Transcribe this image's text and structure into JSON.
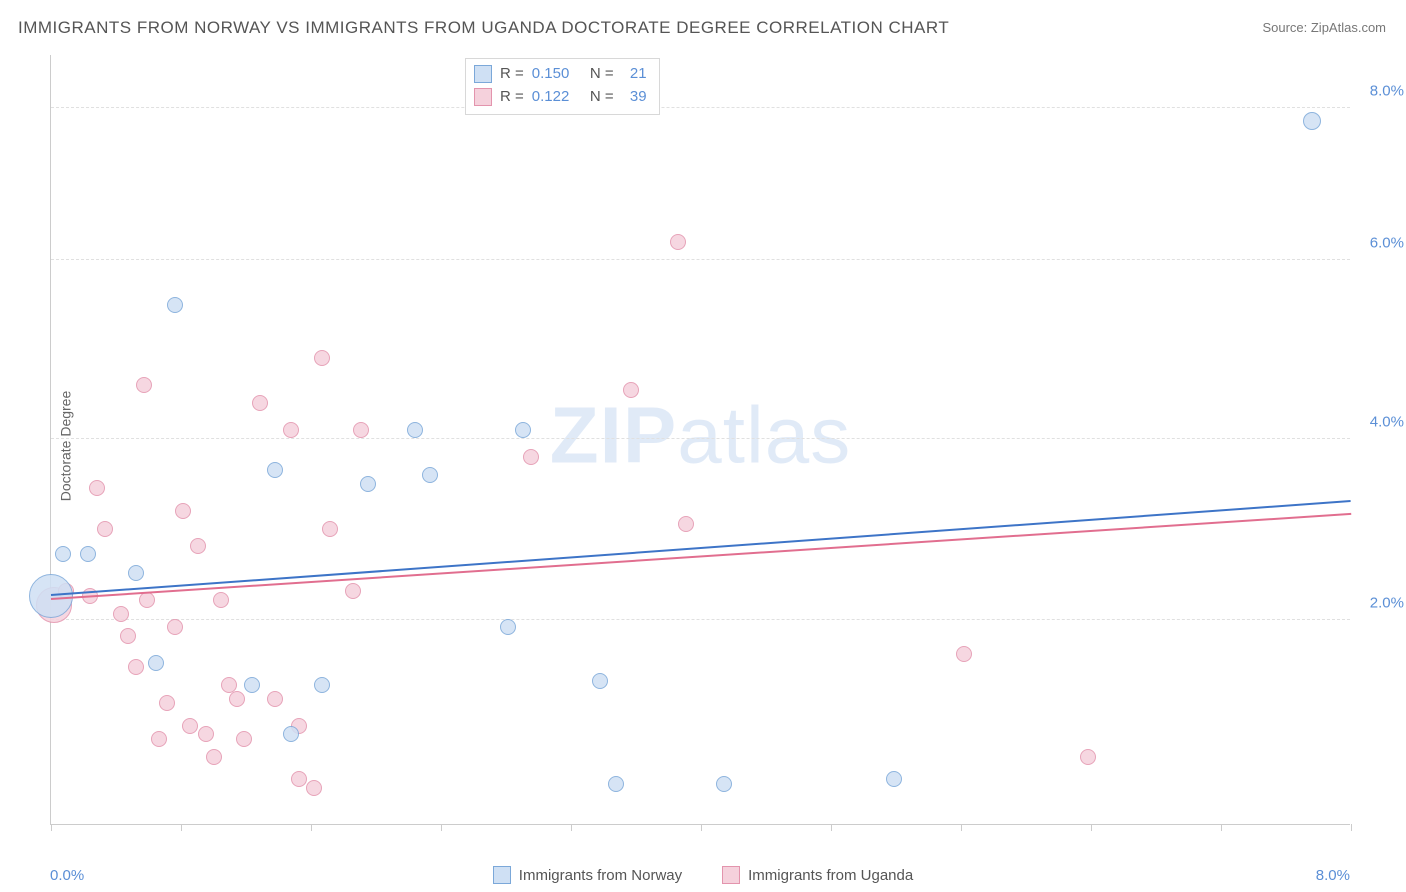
{
  "title": "IMMIGRANTS FROM NORWAY VS IMMIGRANTS FROM UGANDA DOCTORATE DEGREE CORRELATION CHART",
  "source": "Source: ZipAtlas.com",
  "watermark": "ZIPatlas",
  "yaxis_title": "Doctorate Degree",
  "chart": {
    "type": "scatter",
    "xlim": [
      0,
      8.4
    ],
    "ylim": [
      0,
      8.6
    ],
    "x_ticks": [
      0,
      0.84,
      1.68,
      2.52,
      3.36,
      4.2,
      5.04,
      5.88,
      6.72,
      7.56,
      8.4
    ],
    "y_gridlines": [
      2.28,
      4.3,
      6.3,
      8.0
    ],
    "y_labels": [
      "2.0%",
      "4.0%",
      "6.0%",
      "8.0%"
    ],
    "x_min_label": "0.0%",
    "x_max_label": "8.0%",
    "background_color": "#ffffff",
    "grid_color": "#e0e0e0",
    "axis_color": "#cccccc",
    "tick_label_color": "#5b8fd6"
  },
  "series": [
    {
      "name": "Immigrants from Norway",
      "key": "norway",
      "fill": "#cfe0f4",
      "stroke": "#7ba8d9",
      "line_color": "#3d74c7",
      "r_label": "R =",
      "r_value": "0.150",
      "n_label": "N =",
      "n_value": "21",
      "trend": {
        "x1": 0.0,
        "y1": 2.55,
        "x2": 8.4,
        "y2": 3.6
      },
      "points": [
        {
          "x": 0.0,
          "y": 2.55,
          "r": 22
        },
        {
          "x": 0.08,
          "y": 3.02,
          "r": 8
        },
        {
          "x": 0.24,
          "y": 3.02,
          "r": 8
        },
        {
          "x": 0.55,
          "y": 2.8,
          "r": 8
        },
        {
          "x": 0.8,
          "y": 5.8,
          "r": 8
        },
        {
          "x": 0.68,
          "y": 1.8,
          "r": 8
        },
        {
          "x": 1.3,
          "y": 1.55,
          "r": 8
        },
        {
          "x": 1.45,
          "y": 3.95,
          "r": 8
        },
        {
          "x": 1.55,
          "y": 1.0,
          "r": 8
        },
        {
          "x": 1.75,
          "y": 1.55,
          "r": 8
        },
        {
          "x": 2.05,
          "y": 3.8,
          "r": 8
        },
        {
          "x": 2.35,
          "y": 4.4,
          "r": 8
        },
        {
          "x": 2.45,
          "y": 3.9,
          "r": 8
        },
        {
          "x": 2.95,
          "y": 2.2,
          "r": 8
        },
        {
          "x": 3.05,
          "y": 4.4,
          "r": 8
        },
        {
          "x": 3.55,
          "y": 1.6,
          "r": 8
        },
        {
          "x": 3.65,
          "y": 0.45,
          "r": 8
        },
        {
          "x": 4.35,
          "y": 0.45,
          "r": 8
        },
        {
          "x": 5.45,
          "y": 0.5,
          "r": 8
        },
        {
          "x": 8.15,
          "y": 7.85,
          "r": 9
        }
      ]
    },
    {
      "name": "Immigrants from Uganda",
      "key": "uganda",
      "fill": "#f5d1dc",
      "stroke": "#e394ad",
      "line_color": "#e16e8f",
      "r_label": "R =",
      "r_value": "0.122",
      "n_label": "N =",
      "n_value": "39",
      "trend": {
        "x1": 0.0,
        "y1": 2.5,
        "x2": 8.4,
        "y2": 3.45
      },
      "points": [
        {
          "x": 0.02,
          "y": 2.45,
          "r": 18
        },
        {
          "x": 0.1,
          "y": 2.6,
          "r": 8
        },
        {
          "x": 0.25,
          "y": 2.55,
          "r": 8
        },
        {
          "x": 0.3,
          "y": 3.75,
          "r": 8
        },
        {
          "x": 0.35,
          "y": 3.3,
          "r": 8
        },
        {
          "x": 0.45,
          "y": 2.35,
          "r": 8
        },
        {
          "x": 0.5,
          "y": 2.1,
          "r": 8
        },
        {
          "x": 0.55,
          "y": 1.75,
          "r": 8
        },
        {
          "x": 0.6,
          "y": 4.9,
          "r": 8
        },
        {
          "x": 0.62,
          "y": 2.5,
          "r": 8
        },
        {
          "x": 0.7,
          "y": 0.95,
          "r": 8
        },
        {
          "x": 0.75,
          "y": 1.35,
          "r": 8
        },
        {
          "x": 0.8,
          "y": 2.2,
          "r": 8
        },
        {
          "x": 0.85,
          "y": 3.5,
          "r": 8
        },
        {
          "x": 0.9,
          "y": 1.1,
          "r": 8
        },
        {
          "x": 0.95,
          "y": 3.1,
          "r": 8
        },
        {
          "x": 1.0,
          "y": 1.0,
          "r": 8
        },
        {
          "x": 1.05,
          "y": 0.75,
          "r": 8
        },
        {
          "x": 1.1,
          "y": 2.5,
          "r": 8
        },
        {
          "x": 1.15,
          "y": 1.55,
          "r": 8
        },
        {
          "x": 1.2,
          "y": 1.4,
          "r": 8
        },
        {
          "x": 1.25,
          "y": 0.95,
          "r": 8
        },
        {
          "x": 1.35,
          "y": 4.7,
          "r": 8
        },
        {
          "x": 1.45,
          "y": 1.4,
          "r": 8
        },
        {
          "x": 1.55,
          "y": 4.4,
          "r": 8
        },
        {
          "x": 1.6,
          "y": 0.5,
          "r": 8
        },
        {
          "x": 1.6,
          "y": 1.1,
          "r": 8
        },
        {
          "x": 1.7,
          "y": 0.4,
          "r": 8
        },
        {
          "x": 1.75,
          "y": 5.2,
          "r": 8
        },
        {
          "x": 1.8,
          "y": 3.3,
          "r": 8
        },
        {
          "x": 1.95,
          "y": 2.6,
          "r": 8
        },
        {
          "x": 2.0,
          "y": 4.4,
          "r": 8
        },
        {
          "x": 3.1,
          "y": 4.1,
          "r": 8
        },
        {
          "x": 3.75,
          "y": 4.85,
          "r": 8
        },
        {
          "x": 4.05,
          "y": 6.5,
          "r": 8
        },
        {
          "x": 4.1,
          "y": 3.35,
          "r": 8
        },
        {
          "x": 5.9,
          "y": 1.9,
          "r": 8
        },
        {
          "x": 6.7,
          "y": 0.75,
          "r": 8
        }
      ]
    }
  ],
  "legend_bottom": [
    {
      "label": "Immigrants from Norway",
      "fill": "#cfe0f4",
      "stroke": "#7ba8d9"
    },
    {
      "label": "Immigrants from Uganda",
      "fill": "#f5d1dc",
      "stroke": "#e394ad"
    }
  ]
}
